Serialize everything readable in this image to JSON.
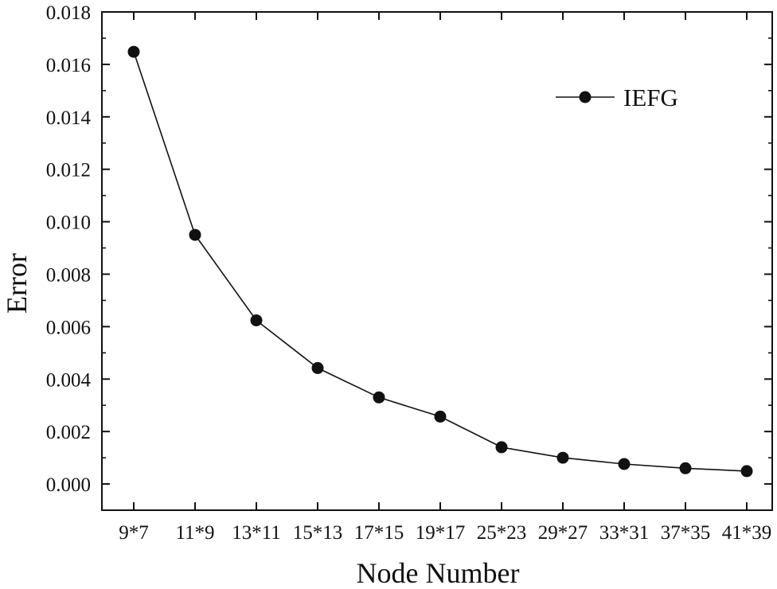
{
  "chart_data": {
    "type": "line",
    "xlabel": "Node Number",
    "ylabel": "Error",
    "categories": [
      "9*7",
      "11*9",
      "13*11",
      "15*13",
      "17*15",
      "19*17",
      "25*23",
      "29*27",
      "33*31",
      "37*35",
      "41*39"
    ],
    "series": [
      {
        "name": "IEFG",
        "values": [
          0.01648,
          0.0095,
          0.00624,
          0.00442,
          0.0033,
          0.00257,
          0.0014,
          0.001,
          0.00076,
          0.0006,
          0.00049
        ],
        "color": "#111111",
        "marker": "filled-circle"
      }
    ],
    "ylim": [
      -0.001,
      0.018
    ],
    "yticks": [
      "0.000",
      "0.002",
      "0.004",
      "0.006",
      "0.008",
      "0.010",
      "0.012",
      "0.014",
      "0.016",
      "0.018"
    ],
    "grid": false,
    "legend_position": "top-right"
  }
}
